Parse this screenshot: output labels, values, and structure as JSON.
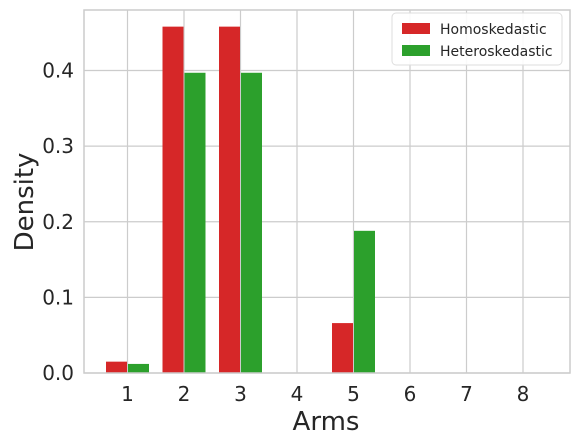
{
  "chart_data": {
    "type": "bar",
    "xlabel": "Arms",
    "ylabel": "Density",
    "categories": [
      "1",
      "2",
      "3",
      "4",
      "5",
      "6",
      "7",
      "8"
    ],
    "yticks": [
      "0.0",
      "0.1",
      "0.2",
      "0.3",
      "0.4"
    ],
    "ylim": [
      0,
      0.48
    ],
    "grid": true,
    "legend_position": "top-right",
    "series": [
      {
        "name": "Homoskedastic",
        "color": "#d62728",
        "values": [
          0.015,
          0.458,
          0.458,
          0.0,
          0.066,
          0.0,
          0.0,
          0.0
        ]
      },
      {
        "name": "Heteroskedastic",
        "color": "#2ca02c",
        "values": [
          0.012,
          0.397,
          0.397,
          0.0,
          0.188,
          0.0,
          0.0,
          0.0
        ]
      }
    ]
  }
}
